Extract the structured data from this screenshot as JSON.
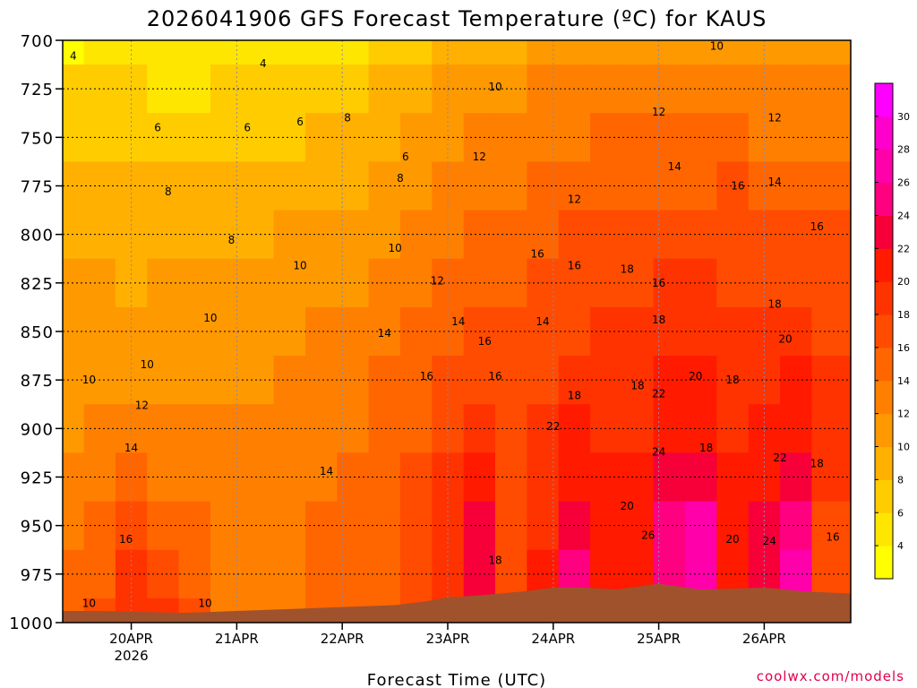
{
  "chart_data": {
    "type": "heatmap",
    "title": "2026041906 GFS Forecast Temperature (ºC) for KAUS",
    "xlabel": "Forecast Time (UTC)",
    "ylabel": "",
    "credit": "coolwx.com/models",
    "y_axis": {
      "ticks": [
        700,
        725,
        750,
        775,
        800,
        825,
        850,
        875,
        900,
        925,
        950,
        975,
        1000
      ],
      "range": [
        700,
        1000
      ],
      "inverted": true,
      "units": "hPa"
    },
    "x_axis": {
      "range_days": [
        -0.65,
        6.82
      ],
      "ticks": [
        {
          "day": 0,
          "label": "20APR",
          "sub": "2026"
        },
        {
          "day": 1,
          "label": "21APR",
          "sub": ""
        },
        {
          "day": 2,
          "label": "22APR",
          "sub": ""
        },
        {
          "day": 3,
          "label": "23APR",
          "sub": ""
        },
        {
          "day": 4,
          "label": "24APR",
          "sub": ""
        },
        {
          "day": 5,
          "label": "25APR",
          "sub": ""
        },
        {
          "day": 6,
          "label": "26APR",
          "sub": ""
        }
      ]
    },
    "colorbar": {
      "levels": [
        2,
        4,
        6,
        8,
        10,
        12,
        14,
        16,
        18,
        20,
        22,
        24,
        26,
        28,
        30,
        32
      ],
      "tick_labels": [
        "4",
        "6",
        "8",
        "10",
        "12",
        "14",
        "16",
        "18",
        "20",
        "22",
        "24",
        "26",
        "28",
        "30"
      ],
      "colors": [
        "#ffff00",
        "#ffe600",
        "#ffcc00",
        "#ffb000",
        "#ff9900",
        "#ff8000",
        "#ff6600",
        "#ff4c00",
        "#ff3300",
        "#ff1a00",
        "#f7003a",
        "#ff0080",
        "#ff00aa",
        "#ff00cc",
        "#ff00ff"
      ]
    },
    "ground": {
      "color": "#a0522d",
      "surface_pressure": [
        [
          -0.65,
          994
        ],
        [
          -0.3,
          994
        ],
        [
          0.5,
          995
        ],
        [
          1.0,
          994
        ],
        [
          1.5,
          993
        ],
        [
          2.0,
          992
        ],
        [
          2.5,
          991
        ],
        [
          2.8,
          989
        ],
        [
          3.0,
          987
        ],
        [
          3.3,
          986
        ],
        [
          3.7,
          984
        ],
        [
          4.0,
          982
        ],
        [
          4.3,
          982
        ],
        [
          4.6,
          983
        ],
        [
          5.0,
          980
        ],
        [
          5.4,
          983
        ],
        [
          6.0,
          982
        ],
        [
          6.4,
          984
        ],
        [
          6.82,
          985
        ]
      ]
    },
    "temperature_field": {
      "pressure_levels": [
        700,
        725,
        750,
        775,
        800,
        825,
        850,
        875,
        900,
        925,
        950,
        975,
        1000
      ],
      "days": [
        -0.6,
        -0.3,
        0.0,
        0.3,
        0.6,
        0.9,
        1.2,
        1.5,
        1.8,
        2.1,
        2.4,
        2.7,
        3.0,
        3.3,
        3.6,
        3.9,
        4.2,
        4.5,
        4.8,
        5.1,
        5.4,
        5.7,
        6.0,
        6.3,
        6.6
      ],
      "values_C": [
        [
          3,
          4,
          4,
          4,
          4,
          4,
          4,
          5,
          5,
          5,
          6,
          7,
          8,
          9,
          9,
          10,
          10,
          10,
          10,
          10,
          10,
          10,
          10,
          11,
          10
        ],
        [
          6,
          6,
          6,
          5,
          5,
          6,
          6,
          6,
          7,
          7,
          8,
          9,
          10,
          11,
          11,
          12,
          12,
          12,
          12,
          12,
          12,
          12,
          12,
          12,
          12
        ],
        [
          7,
          7,
          7,
          7,
          6,
          7,
          7,
          7,
          8,
          8,
          9,
          10,
          11,
          12,
          12,
          13,
          13,
          14,
          14,
          14,
          14,
          14,
          13,
          13,
          13
        ],
        [
          8,
          9,
          8,
          8,
          8,
          8,
          8,
          9,
          9,
          9,
          10,
          11,
          12,
          13,
          13,
          14,
          14,
          15,
          15,
          15,
          15,
          16,
          15,
          15,
          15
        ],
        [
          9,
          9,
          9,
          9,
          9,
          9,
          9,
          10,
          10,
          10,
          11,
          12,
          13,
          14,
          15,
          15,
          16,
          16,
          16,
          17,
          17,
          16,
          16,
          16,
          16
        ],
        [
          10,
          10,
          9,
          10,
          10,
          10,
          10,
          11,
          11,
          11,
          12,
          13,
          14,
          15,
          15,
          16,
          17,
          17,
          17,
          18,
          18,
          17,
          17,
          17,
          16
        ],
        [
          10,
          11,
          10,
          10,
          10,
          10,
          11,
          11,
          12,
          12,
          13,
          14,
          15,
          16,
          16,
          17,
          17,
          18,
          18,
          19,
          19,
          18,
          19,
          19,
          17
        ],
        [
          10,
          11,
          11,
          11,
          11,
          11,
          11,
          12,
          12,
          13,
          14,
          15,
          16,
          17,
          16,
          17,
          18,
          18,
          19,
          20,
          20,
          19,
          19,
          20,
          18
        ],
        [
          11,
          12,
          12,
          12,
          12,
          12,
          12,
          12,
          13,
          13,
          14,
          15,
          17,
          18,
          17,
          18,
          20,
          19,
          19,
          21,
          21,
          19,
          20,
          21,
          18
        ],
        [
          12,
          13,
          14,
          13,
          13,
          12,
          12,
          13,
          13,
          14,
          15,
          16,
          18,
          20,
          17,
          19,
          21,
          20,
          20,
          22,
          23,
          20,
          21,
          22,
          18
        ],
        [
          13,
          14,
          16,
          15,
          14,
          13,
          12,
          13,
          14,
          14,
          15,
          16,
          19,
          22,
          17,
          19,
          23,
          21,
          21,
          24,
          26,
          21,
          22,
          24,
          17
        ],
        [
          14,
          15,
          18,
          17,
          15,
          13,
          12,
          13,
          14,
          14,
          15,
          16,
          19,
          23,
          17,
          20,
          24,
          21,
          21,
          25,
          27,
          21,
          22,
          26,
          17
        ],
        [
          15,
          16,
          19,
          18,
          16,
          13,
          12,
          13,
          14,
          14,
          15,
          16,
          19,
          24,
          17,
          20,
          25,
          21,
          21,
          26,
          28,
          21,
          22,
          27,
          17
        ]
      ]
    },
    "contour_labels": [
      {
        "text": "4",
        "day": -0.55,
        "p": 708
      },
      {
        "text": "4",
        "day": 1.25,
        "p": 712
      },
      {
        "text": "6",
        "day": 0.25,
        "p": 745
      },
      {
        "text": "6",
        "day": 1.1,
        "p": 745
      },
      {
        "text": "6",
        "day": 1.6,
        "p": 742
      },
      {
        "text": "6",
        "day": 2.6,
        "p": 760
      },
      {
        "text": "8",
        "day": 0.35,
        "p": 778
      },
      {
        "text": "8",
        "day": 0.95,
        "p": 803
      },
      {
        "text": "8",
        "day": 2.05,
        "p": 740
      },
      {
        "text": "8",
        "day": 2.55,
        "p": 771
      },
      {
        "text": "10",
        "day": -0.4,
        "p": 875
      },
      {
        "text": "10",
        "day": 0.15,
        "p": 867
      },
      {
        "text": "10",
        "day": 0.75,
        "p": 843
      },
      {
        "text": "10",
        "day": 1.6,
        "p": 816
      },
      {
        "text": "10",
        "day": 2.5,
        "p": 807
      },
      {
        "text": "10",
        "day": 3.45,
        "p": 724
      },
      {
        "text": "10",
        "day": 5.55,
        "p": 703
      },
      {
        "text": "10",
        "day": -0.4,
        "p": 990
      },
      {
        "text": "10",
        "day": 0.7,
        "p": 990
      },
      {
        "text": "12",
        "day": 0.1,
        "p": 888
      },
      {
        "text": "12",
        "day": 2.9,
        "p": 824
      },
      {
        "text": "12",
        "day": 3.3,
        "p": 760
      },
      {
        "text": "12",
        "day": 4.2,
        "p": 782
      },
      {
        "text": "12",
        "day": 5.0,
        "p": 737
      },
      {
        "text": "12",
        "day": 6.1,
        "p": 740
      },
      {
        "text": "14",
        "day": 0.0,
        "p": 910
      },
      {
        "text": "14",
        "day": 1.85,
        "p": 922
      },
      {
        "text": "14",
        "day": 2.4,
        "p": 851
      },
      {
        "text": "14",
        "day": 3.1,
        "p": 845
      },
      {
        "text": "14",
        "day": 3.9,
        "p": 845
      },
      {
        "text": "14",
        "day": 5.15,
        "p": 765
      },
      {
        "text": "14",
        "day": 6.1,
        "p": 773
      },
      {
        "text": "16",
        "day": -0.05,
        "p": 957
      },
      {
        "text": "16",
        "day": 2.8,
        "p": 873
      },
      {
        "text": "16",
        "day": 3.35,
        "p": 855
      },
      {
        "text": "16",
        "day": 3.45,
        "p": 873
      },
      {
        "text": "16",
        "day": 3.85,
        "p": 810
      },
      {
        "text": "16",
        "day": 4.2,
        "p": 816
      },
      {
        "text": "16",
        "day": 5.0,
        "p": 825
      },
      {
        "text": "16",
        "day": 5.75,
        "p": 775
      },
      {
        "text": "16",
        "day": 6.5,
        "p": 796
      },
      {
        "text": "16",
        "day": 6.65,
        "p": 956
      },
      {
        "text": "18",
        "day": 3.45,
        "p": 968
      },
      {
        "text": "18",
        "day": 4.2,
        "p": 883
      },
      {
        "text": "18",
        "day": 4.7,
        "p": 818
      },
      {
        "text": "18",
        "day": 4.8,
        "p": 878
      },
      {
        "text": "18",
        "day": 5.0,
        "p": 844
      },
      {
        "text": "18",
        "day": 5.45,
        "p": 910
      },
      {
        "text": "18",
        "day": 5.7,
        "p": 875
      },
      {
        "text": "18",
        "day": 6.1,
        "p": 836
      },
      {
        "text": "18",
        "day": 6.5,
        "p": 918
      },
      {
        "text": "20",
        "day": 4.7,
        "p": 940
      },
      {
        "text": "20",
        "day": 5.35,
        "p": 873
      },
      {
        "text": "20",
        "day": 5.7,
        "p": 957
      },
      {
        "text": "20",
        "day": 6.2,
        "p": 854
      },
      {
        "text": "22",
        "day": 4.0,
        "p": 899
      },
      {
        "text": "22",
        "day": 5.0,
        "p": 882
      },
      {
        "text": "22",
        "day": 6.15,
        "p": 915
      },
      {
        "text": "24",
        "day": 5.0,
        "p": 912
      },
      {
        "text": "24",
        "day": 6.05,
        "p": 958
      },
      {
        "text": "26",
        "day": 4.9,
        "p": 955
      }
    ]
  }
}
